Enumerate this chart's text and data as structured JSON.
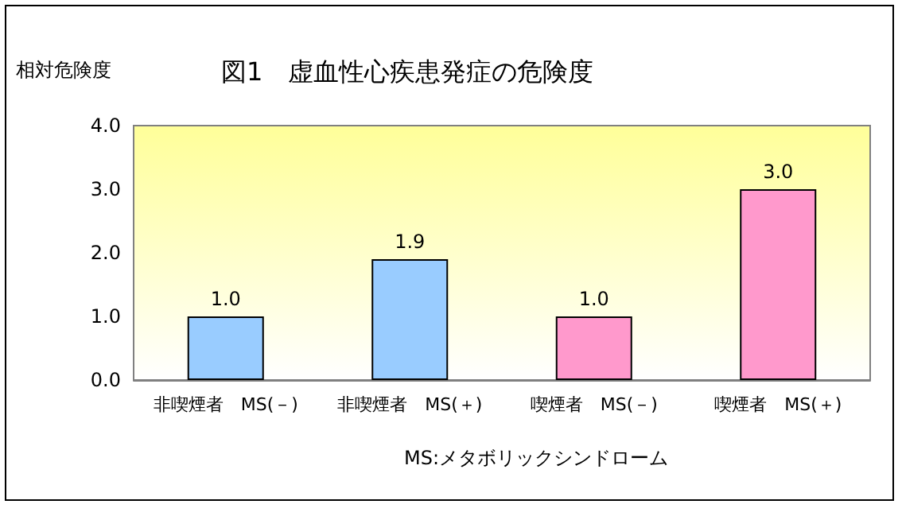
{
  "chart_data": {
    "type": "bar",
    "title": "図1　虚血性心疾患発症の危険度",
    "ylabel": "相対危険度",
    "categories": [
      "非喫煙者　MS(－)",
      "非喫煙者　MS(＋)",
      "喫煙者　MS(－)",
      "喫煙者　MS(＋)"
    ],
    "values": [
      1.0,
      1.9,
      1.0,
      3.0
    ],
    "colors": [
      "#99ccff",
      "#99ccff",
      "#ff99cc",
      "#ff99cc"
    ],
    "value_labels": [
      "1.0",
      "1.9",
      "1.0",
      "3.0"
    ],
    "ylim": [
      0,
      4
    ],
    "yticks": [
      {
        "value": 0,
        "label": "0.0"
      },
      {
        "value": 1,
        "label": "1.0"
      },
      {
        "value": 2,
        "label": "2.0"
      },
      {
        "value": 3,
        "label": "3.0"
      },
      {
        "value": 4,
        "label": "4.0"
      }
    ],
    "grid": false,
    "annotations": [
      "MS:メタボリックシンドローム"
    ]
  }
}
